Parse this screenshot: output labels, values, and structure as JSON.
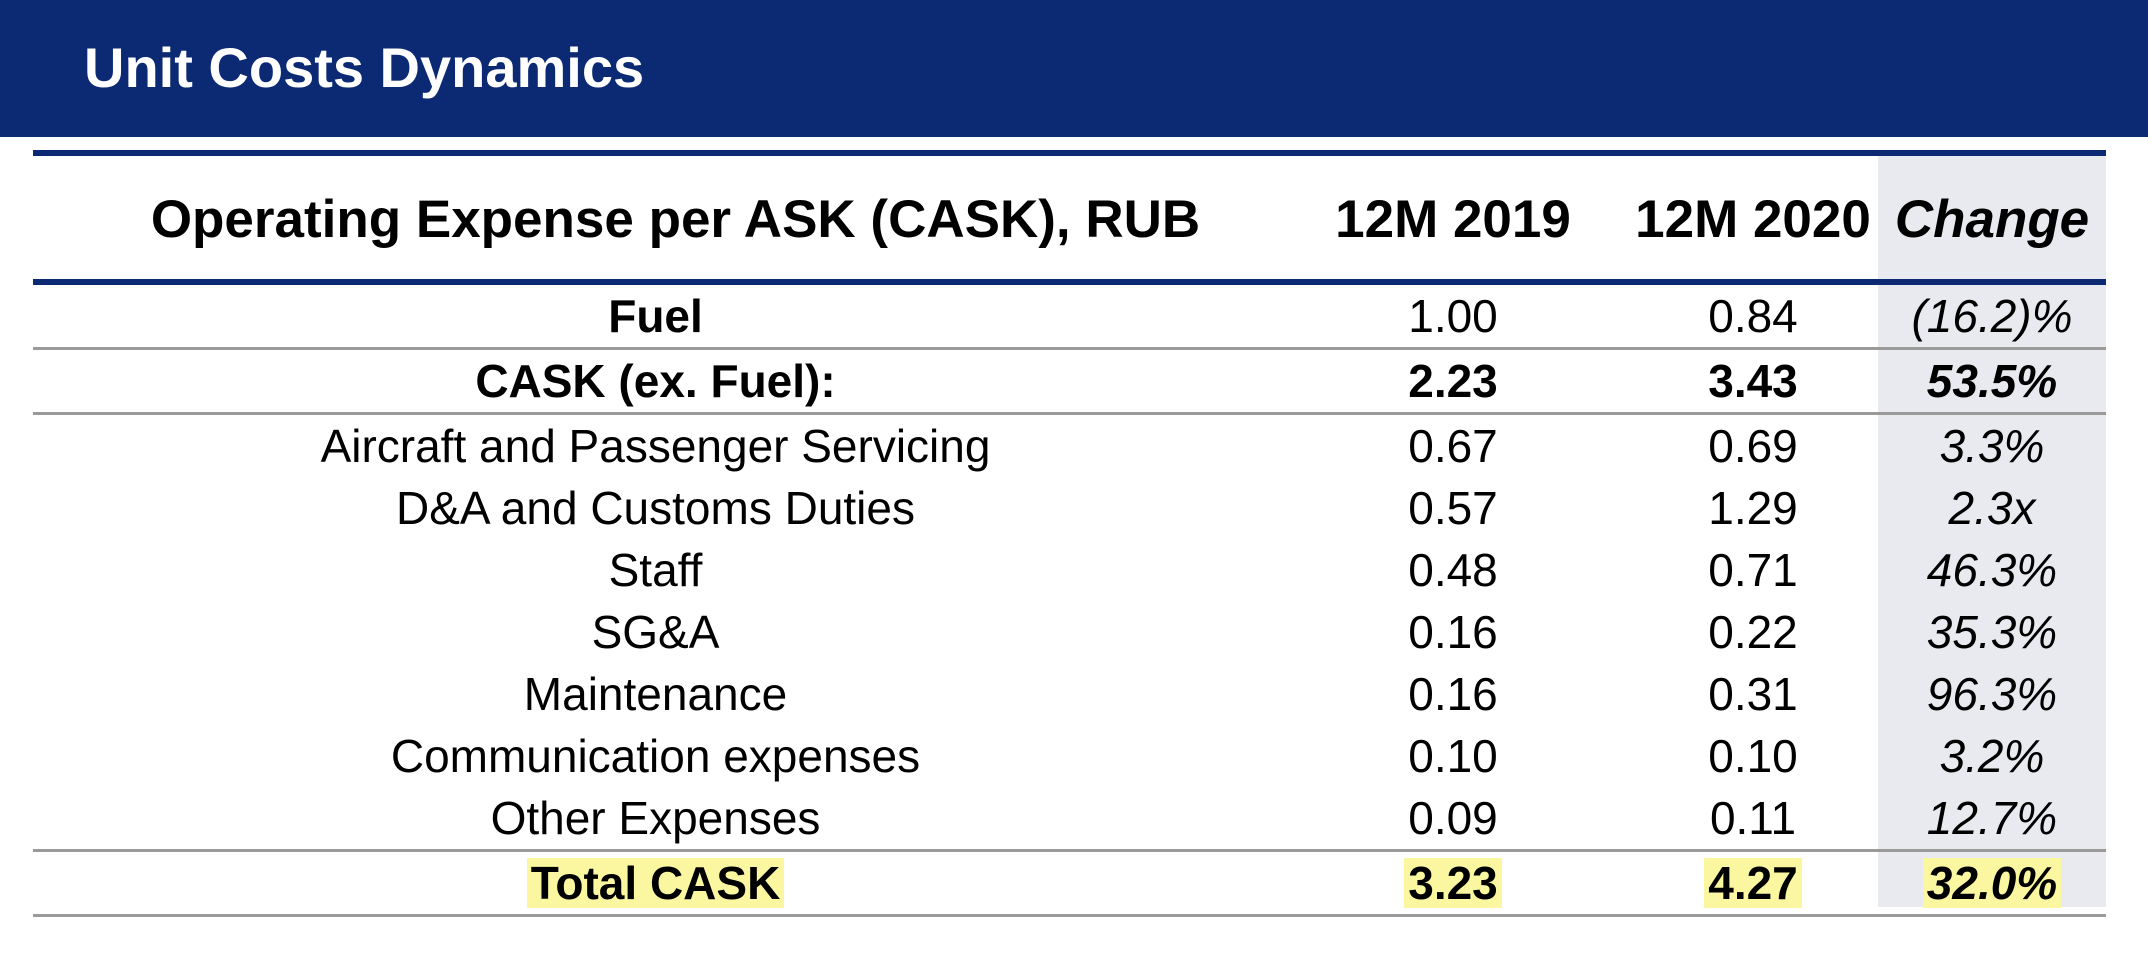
{
  "header": {
    "title": "Unit Costs Dynamics"
  },
  "table": {
    "columns": {
      "label": "Operating Expense per ASK (CASK), RUB",
      "y2019": "12M 2019",
      "y2020": "12M 2020",
      "change": "Change"
    },
    "rows": [
      {
        "label": "Fuel",
        "y2019": "1.00",
        "y2020": "0.84",
        "change": "(16.2)%"
      },
      {
        "label": "CASK (ex. Fuel):",
        "y2019": "2.23",
        "y2020": "3.43",
        "change": "53.5%"
      },
      {
        "label": "Aircraft and Passenger Servicing",
        "y2019": "0.67",
        "y2020": "0.69",
        "change": "3.3%"
      },
      {
        "label": "D&A and Customs Duties",
        "y2019": "0.57",
        "y2020": "1.29",
        "change": "2.3x"
      },
      {
        "label": "Staff",
        "y2019": "0.48",
        "y2020": "0.71",
        "change": "46.3%"
      },
      {
        "label": "SG&A",
        "y2019": "0.16",
        "y2020": "0.22",
        "change": "35.3%"
      },
      {
        "label": "Maintenance",
        "y2019": "0.16",
        "y2020": "0.31",
        "change": "96.3%"
      },
      {
        "label": "Communication expenses",
        "y2019": "0.10",
        "y2020": "0.10",
        "change": "3.2%"
      },
      {
        "label": "Other Expenses",
        "y2019": "0.09",
        "y2020": "0.11",
        "change": "12.7%"
      },
      {
        "label": "Total CASK",
        "y2019": "3.23",
        "y2020": "4.27",
        "change": "32.0%"
      }
    ]
  },
  "colors": {
    "header_bg": "#0c2a73",
    "rule": "#0c2a73",
    "change_column_bg": "#e8eaef",
    "highlight": "#fbf7a0"
  }
}
